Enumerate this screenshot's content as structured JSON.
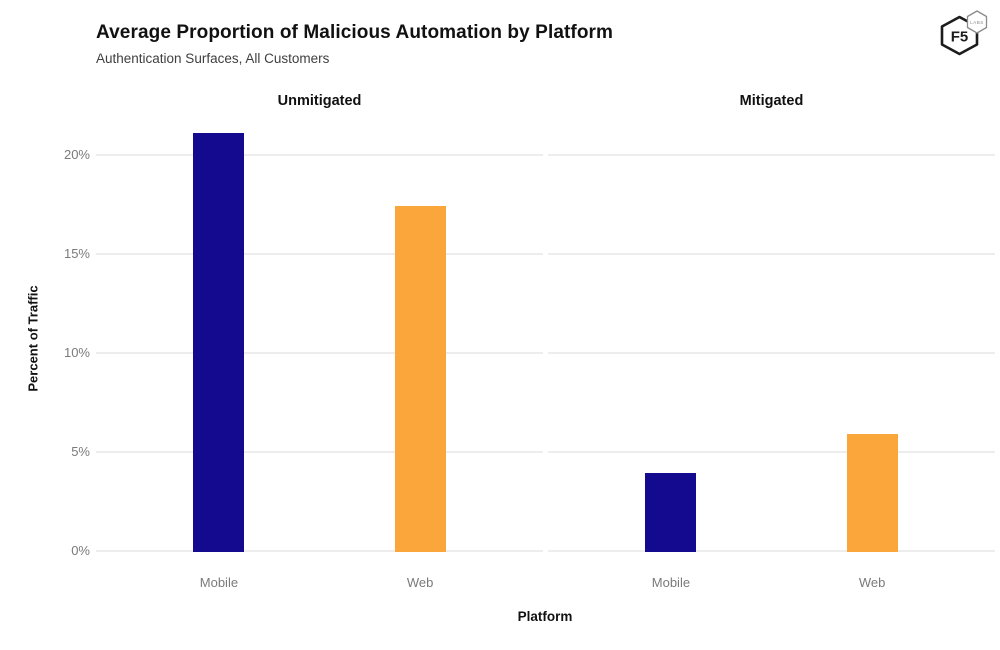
{
  "header": {
    "title": "Average Proportion of Malicious Automation by Platform",
    "subtitle": "Authentication Surfaces, All Customers"
  },
  "logo": {
    "main_text": "F5",
    "sub_text": "LABS"
  },
  "chart_data": {
    "type": "bar",
    "title": "Average Proportion of Malicious Automation by Platform",
    "subtitle": "Authentication Surfaces, All Customers",
    "xlabel": "Platform",
    "ylabel": "Percent of Traffic",
    "categories": [
      "Mobile",
      "Web"
    ],
    "facets": [
      {
        "name": "Unmitigated",
        "values": [
          21.1,
          17.4
        ]
      },
      {
        "name": "Mitigated",
        "values": [
          3.9,
          5.9
        ]
      }
    ],
    "yticks": [
      0,
      5,
      10,
      15,
      20
    ],
    "ytick_labels": [
      "0%",
      "5%",
      "10%",
      "15%",
      "20%"
    ],
    "ylim": [
      0,
      21.7
    ],
    "grid": "horizontal",
    "legend_position": "none",
    "colors": {
      "Mobile": "#130a8f",
      "Web": "#faa63a"
    },
    "gridline_color": "#ededed",
    "tick_label_color": "#7a7a7a"
  }
}
